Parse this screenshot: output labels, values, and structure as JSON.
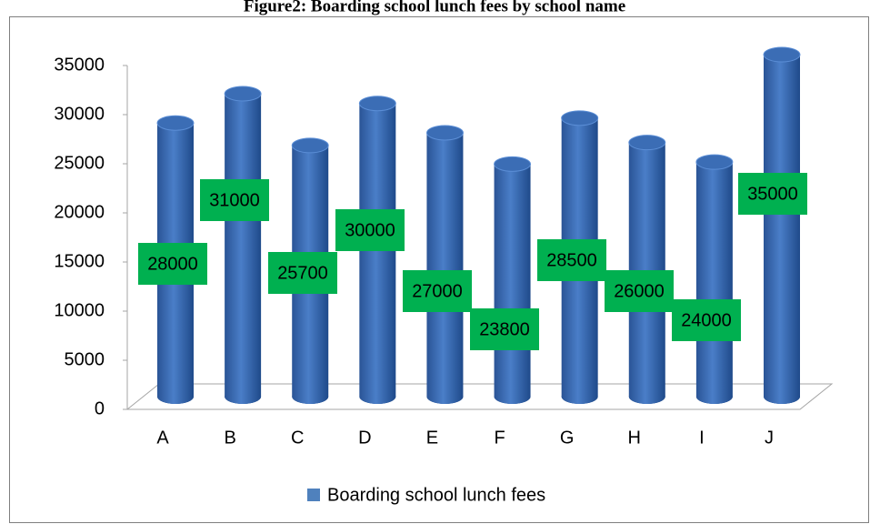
{
  "chart_data": {
    "type": "bar",
    "title": "Figure2: Boarding school lunch fees by school name",
    "categories": [
      "A",
      "B",
      "C",
      "D",
      "E",
      "F",
      "G",
      "H",
      "I",
      "J"
    ],
    "series": [
      {
        "name": "Boarding school lunch fees",
        "color": "#4f81bd",
        "values": [
          28000,
          31000,
          25700,
          30000,
          27000,
          23800,
          28500,
          26000,
          24000,
          35000
        ]
      }
    ],
    "ylim": [
      0,
      35000
    ],
    "yticks": [
      0,
      5000,
      10000,
      15000,
      20000,
      25000,
      30000,
      35000
    ],
    "grid": false
  }
}
